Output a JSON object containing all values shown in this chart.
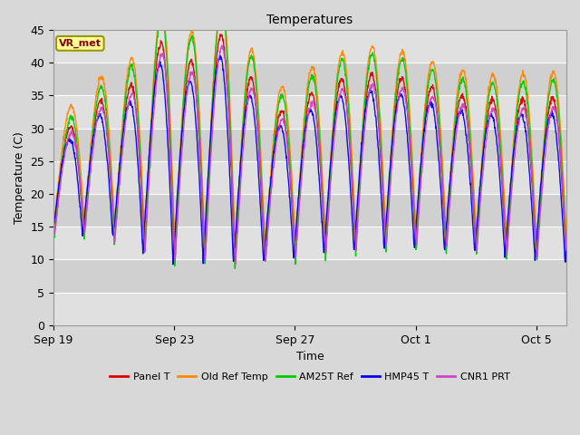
{
  "title": "Temperatures",
  "xlabel": "Time",
  "ylabel": "Temperature (C)",
  "annotation": "VR_met",
  "ylim": [
    0,
    45
  ],
  "xtick_labels": [
    "Sep 19",
    "Sep 23",
    "Sep 27",
    "Oct 1",
    "Oct 5"
  ],
  "xtick_positions": [
    0,
    4,
    8,
    12,
    16
  ],
  "ytick_positions": [
    0,
    5,
    10,
    15,
    20,
    25,
    30,
    35,
    40,
    45
  ],
  "series_colors": {
    "Panel T": "#dd0000",
    "Old Ref Temp": "#ff8800",
    "AM25T Ref": "#00cc00",
    "HMP45 T": "#0000ee",
    "CNR1 PRT": "#cc44cc"
  },
  "series_names": [
    "Panel T",
    "Old Ref Temp",
    "AM25T Ref",
    "HMP45 T",
    "CNR1 PRT"
  ],
  "bg_color": "#d8d8d8",
  "plot_bg_color": "#ebebeb",
  "annotation_color": "#880000",
  "annotation_bg": "#ffff99",
  "annotation_border": "#999900",
  "grid_band_light": "#e8e8e8",
  "grid_band_dark": "#d8d8d8"
}
